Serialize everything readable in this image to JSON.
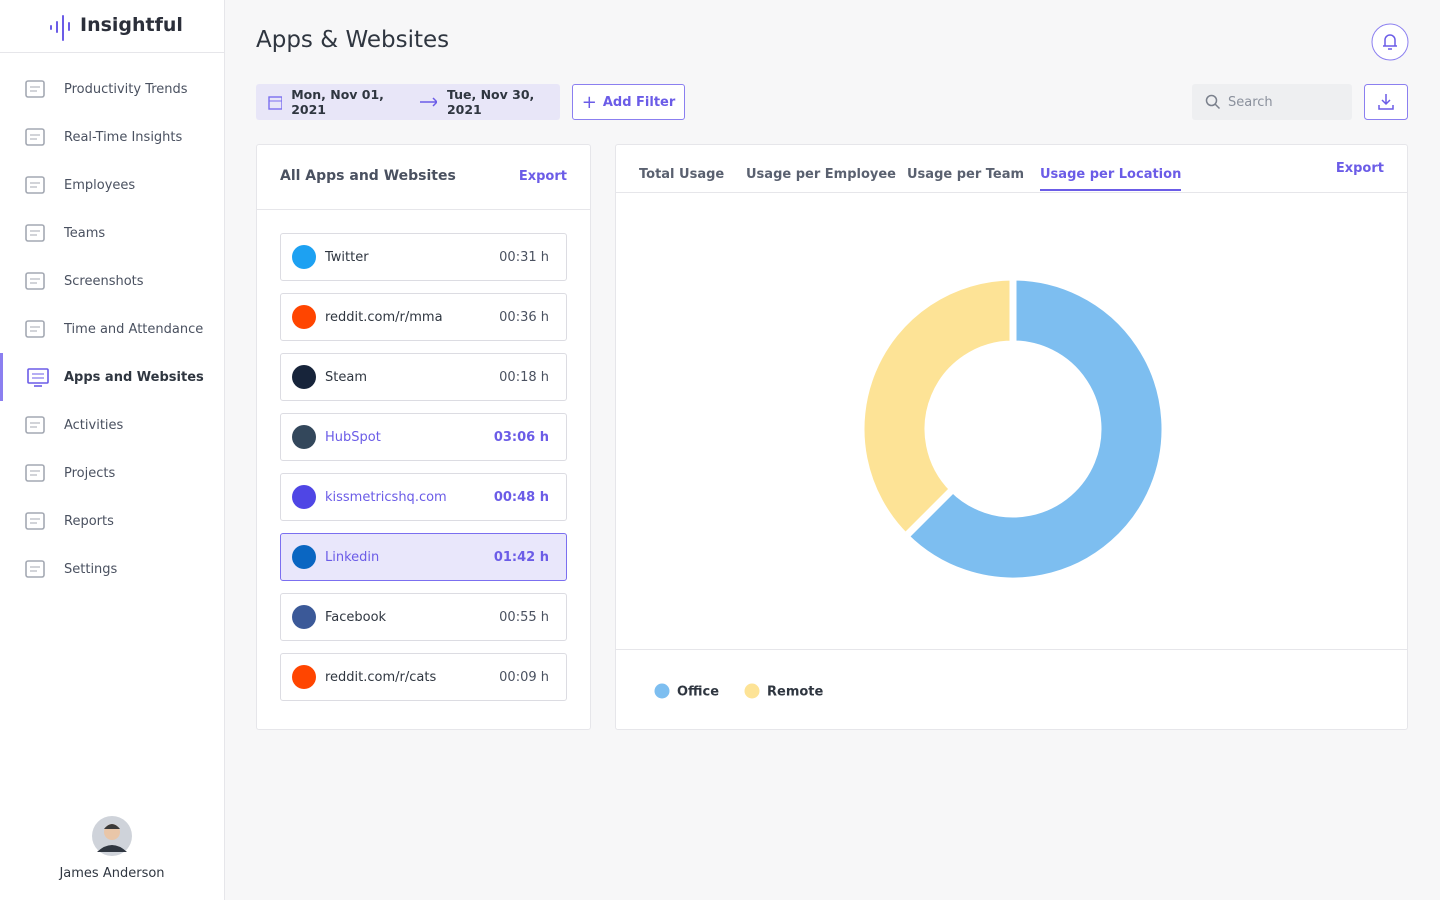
{
  "brand": "Insightful",
  "nav": {
    "items": [
      "Productivity Trends",
      "Real-Time Insights",
      "Employees",
      "Teams",
      "Screenshots",
      "Time and Attendance",
      "Apps and Websites",
      "Activities",
      "Projects",
      "Reports",
      "Settings"
    ],
    "active": 6
  },
  "user": {
    "name": "James Anderson"
  },
  "header": {
    "title": "Apps & Websites"
  },
  "filters": {
    "date_start": "Mon, Nov 01, 2021",
    "date_end": "Tue, Nov 30, 2021",
    "add_filter": "Add Filter",
    "search_placeholder": "Search"
  },
  "list_panel": {
    "title": "All Apps and Websites",
    "export": "Export",
    "items": [
      {
        "name": "Twitter",
        "time": "00:31 h",
        "color": "#2f3640"
      },
      {
        "name": "reddit.com/r/mma",
        "time": "00:36 h",
        "color": "#2f3640"
      },
      {
        "name": "Steam",
        "time": "00:18 h",
        "color": "#2f3640"
      },
      {
        "name": "HubSpot",
        "time": "03:06 h",
        "color": "#6b5ce7"
      },
      {
        "name": "kissmetricshq.com",
        "time": "00:48 h",
        "color": "#6b5ce7"
      },
      {
        "name": "Linkedin",
        "time": "01:42 h",
        "color": "#6b5ce7",
        "selected": true
      },
      {
        "name": "Facebook",
        "time": "00:55 h",
        "color": "#2f3640"
      },
      {
        "name": "reddit.com/r/cats",
        "time": "00:09 h",
        "color": "#2f3640"
      }
    ]
  },
  "chart_panel": {
    "tabs": [
      "Total Usage",
      "Usage per Employee",
      "Usage per Team",
      "Usage per Location"
    ],
    "active_tab": 3,
    "export": "Export"
  },
  "chart_data": {
    "type": "pie",
    "donut": true,
    "categories": [
      "Office",
      "Remote"
    ],
    "values": [
      62.5,
      37.5
    ],
    "colors": [
      "#7dbef0",
      "#fde396"
    ],
    "legend": "bottom-left"
  }
}
